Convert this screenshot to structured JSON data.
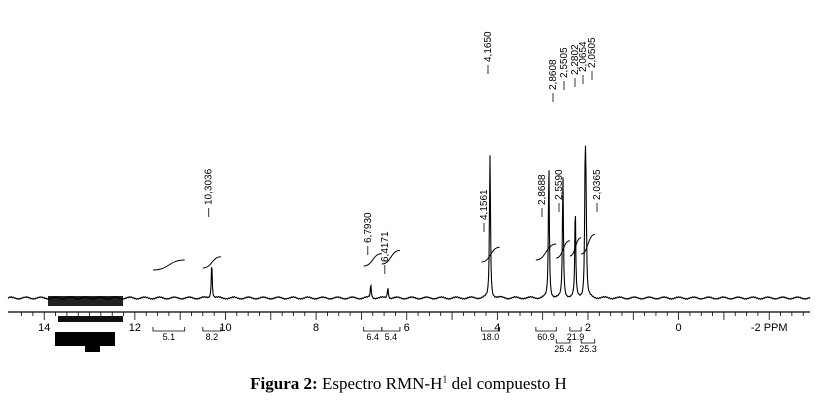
{
  "chart_data": {
    "type": "line",
    "title": "",
    "xlabel": "PPM",
    "ylabel": "",
    "xlim": [
      14.8,
      -2.9
    ],
    "reversed_x_axis": true,
    "tick_labels": [
      "14",
      "12",
      "10",
      "8",
      "6",
      "4",
      "2",
      "0",
      "-2 PPM"
    ],
    "tick_values": [
      14,
      12,
      10,
      8,
      6,
      4,
      2,
      0,
      -2
    ],
    "peaks": [
      {
        "ppm": 10.3036,
        "label": "10,3036",
        "height": 0.32
      },
      {
        "ppm": 6.793,
        "label": "6,7930",
        "height": 0.12
      },
      {
        "ppm": 6.4171,
        "label": "6,4171",
        "height": 0.1
      },
      {
        "ppm": 4.165,
        "label": "4,1650",
        "height": 1.0
      },
      {
        "ppm": 4.1561,
        "label": "4,1561",
        "height": 0.35
      },
      {
        "ppm": 2.8688,
        "label": "2,8688",
        "height": 0.36
      },
      {
        "ppm": 2.8608,
        "label": "2,8608",
        "height": 0.86
      },
      {
        "ppm": 2.559,
        "label": "2,5590",
        "height": 0.3
      },
      {
        "ppm": 2.5505,
        "label": "2,5505",
        "height": 0.82
      },
      {
        "ppm": 2.2802,
        "label": "2,2802",
        "height": 0.8
      },
      {
        "ppm": 2.0654,
        "label": "2,0654",
        "height": 0.78
      },
      {
        "ppm": 2.0505,
        "label": "2,0505",
        "height": 0.88
      },
      {
        "ppm": 2.0365,
        "label": "2,0365",
        "height": 0.3
      }
    ],
    "integrals": [
      {
        "from": 11.6,
        "to": 10.9,
        "value": "5.1"
      },
      {
        "from": 10.5,
        "to": 10.1,
        "value": "8.2"
      },
      {
        "from": 6.95,
        "to": 6.55,
        "value": "6.4"
      },
      {
        "from": 6.55,
        "to": 6.15,
        "value": "5.4"
      },
      {
        "from": 4.35,
        "to": 3.95,
        "value": "18.0"
      },
      {
        "from": 3.15,
        "to": 2.7,
        "value": "60.9"
      },
      {
        "from": 2.7,
        "to": 2.4,
        "value": "25.4"
      },
      {
        "from": 2.4,
        "to": 2.15,
        "value": "21.9"
      },
      {
        "from": 2.15,
        "to": 1.85,
        "value": "25.3"
      }
    ]
  },
  "caption": {
    "label": "Figura 2:",
    "text_before_sup": " Espectro RMN-H",
    "sup": "1",
    "text_after_sup": " del compuesto H"
  }
}
